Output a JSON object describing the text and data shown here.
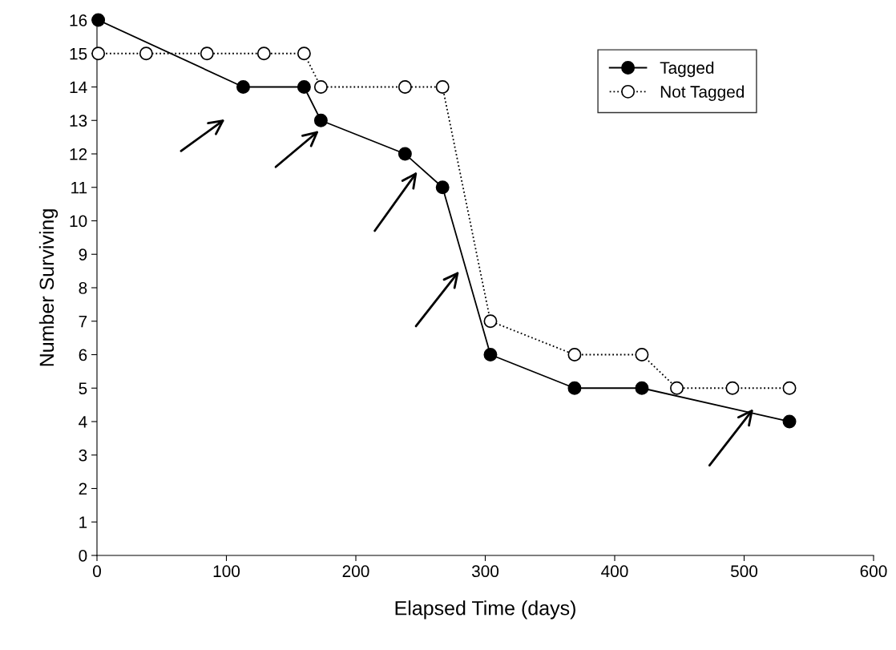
{
  "chart_data": {
    "type": "line",
    "xlabel": "Elapsed Time (days)",
    "ylabel": "Number Surviving",
    "series": [
      {
        "name": "Tagged",
        "color": "#000000",
        "marker": "circle",
        "line_style": "solid",
        "x": [
          1,
          113,
          160,
          173,
          238,
          267,
          304,
          369,
          421,
          535
        ],
        "values": [
          16,
          14,
          14,
          13,
          12,
          11,
          6,
          5,
          5,
          4
        ]
      },
      {
        "name": "Not Tagged",
        "color": "#000000",
        "marker": "circle",
        "line_style": "dotted",
        "x": [
          1,
          38,
          85,
          129,
          160,
          173,
          238,
          267,
          304,
          369,
          421,
          448,
          491,
          535
        ],
        "values": [
          15,
          15,
          15,
          15,
          15,
          14,
          14,
          14,
          7,
          6,
          6,
          5,
          5,
          5
        ]
      }
    ],
    "xlim": [
      0,
      600
    ],
    "xticks": [
      0,
      100,
      200,
      300,
      400,
      500,
      600
    ],
    "ylim": [
      0,
      16
    ],
    "yticks": [
      0,
      1,
      2,
      3,
      4,
      5,
      6,
      7,
      8,
      9,
      10,
      11,
      12,
      13,
      14,
      15,
      16
    ],
    "grid": false,
    "legend": "top right"
  }
}
